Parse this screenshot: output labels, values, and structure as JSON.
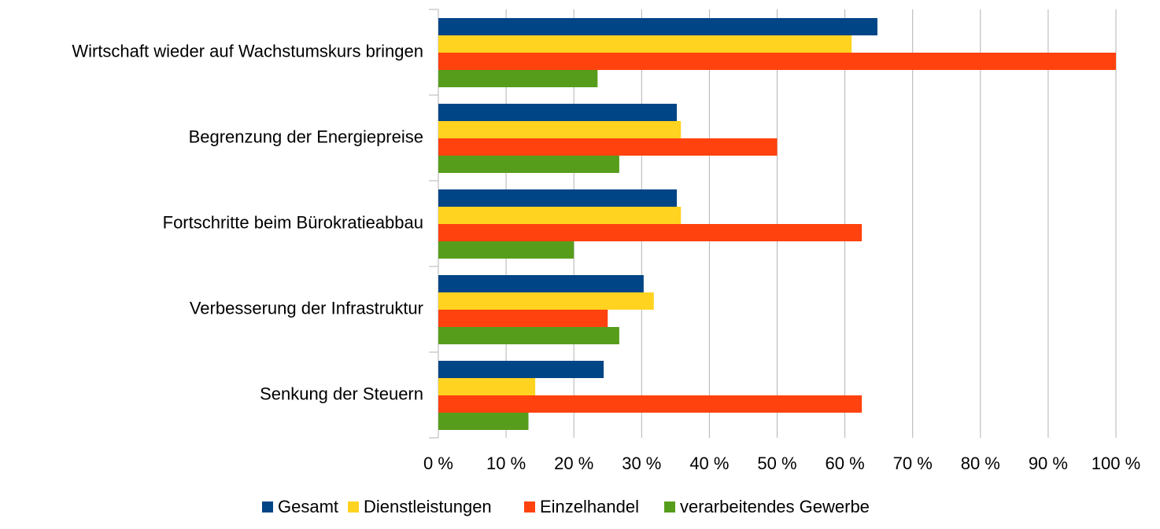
{
  "chart_data": {
    "type": "hbar",
    "categories": [
      "Wirtschaft wieder auf Wachstumskurs bringen",
      "Begrenzung der Energiepreise",
      "Fortschritte beim Bürokratieabbau",
      "Verbesserung der Infrastruktur",
      "Senkung der Steuern"
    ],
    "series": [
      {
        "name": "Gesamt",
        "color": "#004586",
        "values": [
          64.8,
          35.2,
          35.2,
          30.3,
          24.4
        ]
      },
      {
        "name": "Dienstleistungen",
        "color": "#ffd320",
        "values": [
          61,
          35.8,
          35.8,
          31.8,
          14.3
        ]
      },
      {
        "name": "Einzelhandel",
        "color": "#ff420e",
        "values": [
          100,
          50,
          62.5,
          25,
          62.5
        ]
      },
      {
        "name": "verarbeitendes Gewerbe",
        "color": "#579d1c",
        "values": [
          23.5,
          26.7,
          20,
          26.7,
          13.3
        ]
      }
    ],
    "xlim": [
      0,
      100
    ],
    "xticks": [
      {
        "value": 0,
        "label": "0 %"
      },
      {
        "value": 10,
        "label": "10 %"
      },
      {
        "value": 20,
        "label": "20 %"
      },
      {
        "value": 30,
        "label": "30 %"
      },
      {
        "value": 40,
        "label": "40 %"
      },
      {
        "value": 50,
        "label": "50 %"
      },
      {
        "value": 60,
        "label": "60 %"
      },
      {
        "value": 70,
        "label": "70 %"
      },
      {
        "value": 80,
        "label": "80 %"
      },
      {
        "value": 90,
        "label": "90 %"
      },
      {
        "value": 100,
        "label": "100 %"
      }
    ],
    "grid": true,
    "legend": "bottom"
  }
}
